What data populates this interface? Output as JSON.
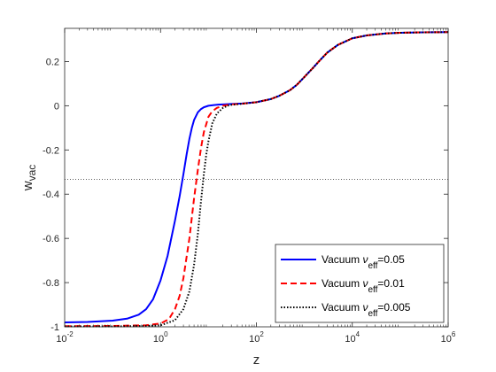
{
  "chart_data": {
    "type": "line",
    "xscale": "log",
    "xlim": [
      0.01,
      1000000
    ],
    "ylim": [
      -1,
      0.35
    ],
    "xlabel": "z",
    "ylabel": "w",
    "ylabel_sub": "vac",
    "x_ticks": [
      {
        "value": 0.01,
        "base": "10",
        "exp": "-2"
      },
      {
        "value": 1,
        "base": "10",
        "exp": "0"
      },
      {
        "value": 100,
        "base": "10",
        "exp": "2"
      },
      {
        "value": 10000,
        "base": "10",
        "exp": "4"
      },
      {
        "value": 1000000,
        "base": "10",
        "exp": "6"
      }
    ],
    "y_ticks": [
      {
        "value": 0.2,
        "label": "0.2"
      },
      {
        "value": 0,
        "label": "0"
      },
      {
        "value": -0.2,
        "label": "-0.2"
      },
      {
        "value": -0.4,
        "label": "-0.4"
      },
      {
        "value": -0.6,
        "label": "-0.6"
      },
      {
        "value": -0.8,
        "label": "-0.8"
      },
      {
        "value": -1,
        "label": "-1"
      }
    ],
    "reference_line": {
      "y": -0.3333,
      "style": "dotted",
      "color": "#444444"
    },
    "legend": {
      "placement": "bottom-right"
    },
    "series": [
      {
        "name_prefix": "Vacuum ",
        "name_nu": "ν",
        "name_sub": "eff",
        "name_suffix": "=0.05",
        "color": "#0000ff",
        "style": "solid",
        "x": [
          0.01,
          0.03,
          0.1,
          0.2,
          0.35,
          0.5,
          0.7,
          1,
          1.4,
          2,
          2.5,
          3,
          3.5,
          4,
          4.5,
          5,
          6,
          7,
          8,
          10,
          13,
          16,
          20,
          30,
          50,
          100,
          200,
          300,
          500,
          700,
          1000,
          1500,
          2000,
          3000,
          5000,
          10000,
          20000,
          50000,
          100000,
          300000,
          1000000
        ],
        "y": [
          -0.98,
          -0.978,
          -0.972,
          -0.963,
          -0.945,
          -0.92,
          -0.875,
          -0.79,
          -0.68,
          -0.52,
          -0.41,
          -0.31,
          -0.22,
          -0.15,
          -0.1,
          -0.065,
          -0.03,
          -0.015,
          -0.007,
          0.0,
          0.003,
          0.005,
          0.006,
          0.008,
          0.01,
          0.016,
          0.03,
          0.045,
          0.07,
          0.095,
          0.13,
          0.17,
          0.2,
          0.24,
          0.275,
          0.305,
          0.318,
          0.327,
          0.33,
          0.332,
          0.333
        ]
      },
      {
        "name_prefix": "Vacuum ",
        "name_nu": "ν",
        "name_sub": "eff",
        "name_suffix": "=0.01",
        "color": "#ff0000",
        "style": "dashed",
        "x": [
          0.01,
          0.1,
          0.5,
          1,
          1.5,
          2,
          2.5,
          3,
          4,
          5,
          6,
          7,
          8,
          10,
          12,
          15,
          20,
          30,
          50,
          100,
          200,
          300,
          500,
          700,
          1000,
          1500,
          2000,
          3000,
          5000,
          10000,
          20000,
          50000,
          100000,
          300000,
          1000000
        ],
        "y": [
          -0.997,
          -0.996,
          -0.993,
          -0.985,
          -0.965,
          -0.92,
          -0.86,
          -0.78,
          -0.6,
          -0.42,
          -0.29,
          -0.19,
          -0.12,
          -0.05,
          -0.025,
          -0.01,
          0.0,
          0.006,
          0.009,
          0.016,
          0.03,
          0.045,
          0.07,
          0.095,
          0.13,
          0.17,
          0.2,
          0.24,
          0.275,
          0.305,
          0.318,
          0.327,
          0.33,
          0.332,
          0.333
        ]
      },
      {
        "name_prefix": "Vacuum ",
        "name_nu": "ν",
        "name_sub": "eff",
        "name_suffix": "=0.005",
        "color": "#000000",
        "style": "dotted",
        "x": [
          0.01,
          0.1,
          0.5,
          1,
          2,
          3,
          4,
          5,
          6,
          7,
          8,
          9,
          10,
          12,
          15,
          20,
          25,
          30,
          50,
          100,
          200,
          300,
          500,
          700,
          1000,
          1500,
          2000,
          3000,
          5000,
          10000,
          20000,
          50000,
          100000,
          300000,
          1000000
        ],
        "y": [
          -0.998,
          -0.998,
          -0.996,
          -0.993,
          -0.97,
          -0.92,
          -0.84,
          -0.72,
          -0.58,
          -0.43,
          -0.31,
          -0.22,
          -0.16,
          -0.08,
          -0.035,
          -0.01,
          0.0,
          0.004,
          0.009,
          0.016,
          0.03,
          0.045,
          0.07,
          0.095,
          0.13,
          0.17,
          0.2,
          0.24,
          0.275,
          0.305,
          0.318,
          0.327,
          0.33,
          0.332,
          0.333
        ]
      }
    ]
  }
}
